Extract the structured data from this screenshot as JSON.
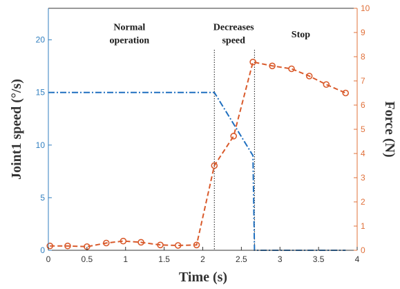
{
  "chart_data": {
    "type": "line",
    "xlabel": "Time (s)",
    "ylabel_left": "Joint1 speed (°/s)",
    "ylabel_right": "Force (N)",
    "xlim": [
      0,
      4
    ],
    "ylim_left": [
      0,
      23
    ],
    "ylim_right": [
      0,
      10
    ],
    "x_ticks": [
      "0",
      "0.5",
      "1",
      "1.5",
      "2",
      "2.5",
      "3",
      "3.5",
      "4"
    ],
    "y_left_ticks": [
      "0",
      "5",
      "10",
      "15",
      "20"
    ],
    "y_right_ticks": [
      "0",
      "1",
      "2",
      "3",
      "4",
      "5",
      "6",
      "7",
      "8",
      "9",
      "10"
    ],
    "grid": false,
    "colors": {
      "left_axis": "#2f7ebf",
      "right_axis": "#e0703a",
      "speed": "#1f6fbf",
      "force": "#d95a2b"
    },
    "series": [
      {
        "axis": "left",
        "style": "dash-dot",
        "x": [
          0,
          2.15,
          2.65,
          2.67,
          3.85
        ],
        "values": [
          15,
          15,
          9,
          0,
          0
        ]
      },
      {
        "axis": "right",
        "style": "dashed-circle-markers",
        "x": [
          0.02,
          0.25,
          0.5,
          0.75,
          0.97,
          1.2,
          1.45,
          1.68,
          1.92,
          2.15,
          2.4,
          2.65,
          2.9,
          3.15,
          3.38,
          3.6,
          3.85
        ],
        "values": [
          0.18,
          0.18,
          0.15,
          0.3,
          0.38,
          0.33,
          0.22,
          0.2,
          0.22,
          3.5,
          4.72,
          7.78,
          7.62,
          7.5,
          7.2,
          6.85,
          6.5
        ]
      }
    ],
    "annotations": [
      {
        "lines": [
          "Normal",
          "operation"
        ],
        "x": 1.05,
        "y_right": 9.1
      },
      {
        "lines": [
          "Decreases",
          "speed"
        ],
        "x": 2.4,
        "y_right": 9.1
      },
      {
        "lines": [
          "Stop"
        ],
        "x": 3.27,
        "y_right": 8.8
      }
    ],
    "vlines": [
      2.15,
      2.67
    ]
  }
}
